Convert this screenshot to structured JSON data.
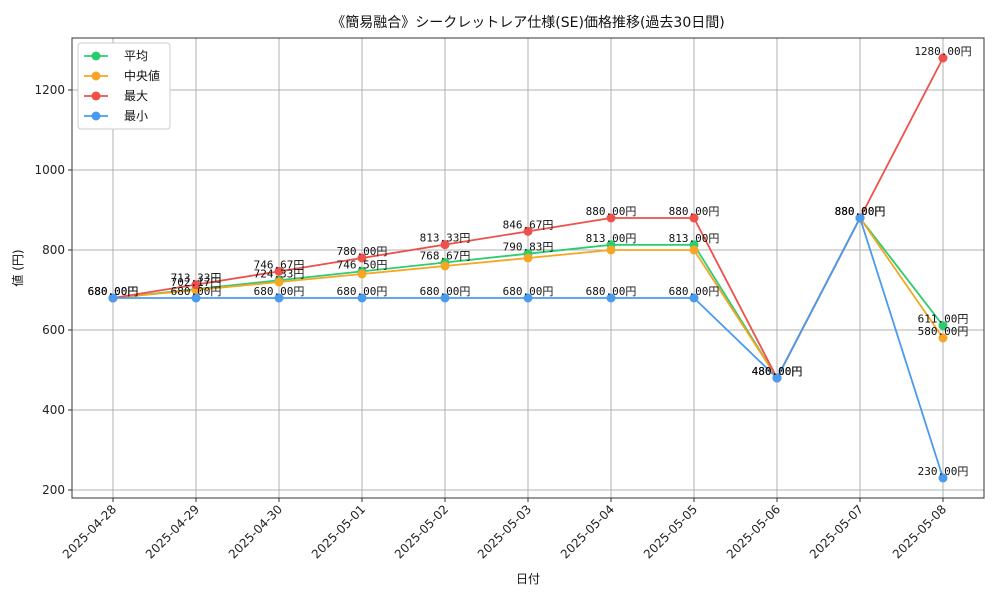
{
  "chart_data": {
    "type": "line",
    "title": "《簡易融合》シークレットレア仕様(SE)価格推移(過去30日間)",
    "xlabel": "日付",
    "ylabel": "値 (円)",
    "categories": [
      "2025-04-28",
      "2025-04-29",
      "2025-04-30",
      "2025-05-01",
      "2025-05-02",
      "2025-05-03",
      "2025-05-04",
      "2025-05-05",
      "2025-05-06",
      "2025-05-07",
      "2025-05-08"
    ],
    "ylim": [
      180,
      1330
    ],
    "yticks": [
      200,
      400,
      600,
      800,
      1000,
      1200
    ],
    "grid": true,
    "legend_position": "top-left",
    "series": [
      {
        "name": "平均",
        "color": "#2ecc71",
        "values": [
          680.0,
          702.17,
          724.33,
          746.5,
          768.67,
          790.83,
          813.0,
          813.0,
          480.0,
          880.0,
          611.0
        ]
      },
      {
        "name": "中央値",
        "color": "#f5a623",
        "values": [
          680.0,
          700.0,
          720.0,
          740.0,
          760.0,
          780.0,
          800.0,
          800.0,
          480.0,
          880.0,
          580.0
        ]
      },
      {
        "name": "最大",
        "color": "#f0504a",
        "values": [
          680.0,
          713.33,
          746.67,
          780.0,
          813.33,
          846.67,
          880.0,
          880.0,
          480.0,
          880.0,
          1280.0
        ]
      },
      {
        "name": "最小",
        "color": "#4a9af0",
        "values": [
          680.0,
          680.0,
          680.0,
          680.0,
          680.0,
          680.0,
          680.0,
          680.0,
          480.0,
          880.0,
          230.0
        ]
      }
    ],
    "labels": {
      "平均": [
        "680.00円",
        "702.17円",
        "724.33円",
        "746.50円",
        "768.67円",
        "790.83円",
        "813.00円",
        "813.00円",
        "480.00円",
        "880.00円",
        "611.00円"
      ],
      "最大": [
        "680.00円",
        "713.33円",
        "746.67円",
        "780.00円",
        "813.33円",
        "846.67円",
        "880.00円",
        "880.00円",
        "480.00円",
        "880.00円",
        "1280.00円"
      ],
      "最小": [
        "680.00円",
        "680.00円",
        "680.00円",
        "680.00円",
        "680.00円",
        "680.00円",
        "680.00円",
        "680.00円",
        "480.00円",
        "880.00円",
        "230.00円"
      ],
      "中央値": [
        "",
        "",
        "",
        "",
        "",
        "",
        "",
        "",
        "",
        "",
        "580.00円"
      ]
    }
  }
}
